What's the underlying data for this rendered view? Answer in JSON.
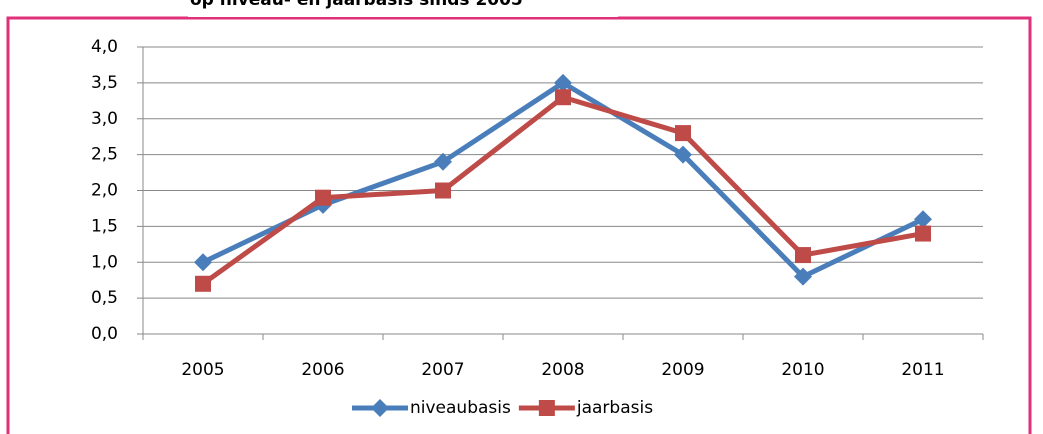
{
  "chart_data": {
    "type": "line",
    "title": "op niveau- en jaarbasis sinds 2005",
    "categories": [
      "2005",
      "2006",
      "2007",
      "2008",
      "2009",
      "2010",
      "2011"
    ],
    "series": [
      {
        "name": "niveaubasis",
        "color": "#4a7ebb",
        "marker": "diamond",
        "values": [
          1.0,
          1.8,
          2.4,
          3.5,
          2.5,
          0.8,
          1.6
        ]
      },
      {
        "name": "jaarbasis",
        "color": "#be4b48",
        "marker": "square",
        "values": [
          0.7,
          1.9,
          2.0,
          3.3,
          2.8,
          1.1,
          1.4
        ]
      }
    ],
    "ylim": [
      0,
      4
    ],
    "yticks": [
      {
        "value": 0,
        "label": "0,0"
      },
      {
        "value": 0.5,
        "label": "0,5"
      },
      {
        "value": 1,
        "label": "1,0"
      },
      {
        "value": 1.5,
        "label": "1,5"
      },
      {
        "value": 2,
        "label": "2,0"
      },
      {
        "value": 2.5,
        "label": "2,5"
      },
      {
        "value": 3,
        "label": "3,0"
      },
      {
        "value": 3.5,
        "label": "3,5"
      },
      {
        "value": 4,
        "label": "4,0"
      }
    ],
    "grid": true,
    "legend": "bottom"
  }
}
